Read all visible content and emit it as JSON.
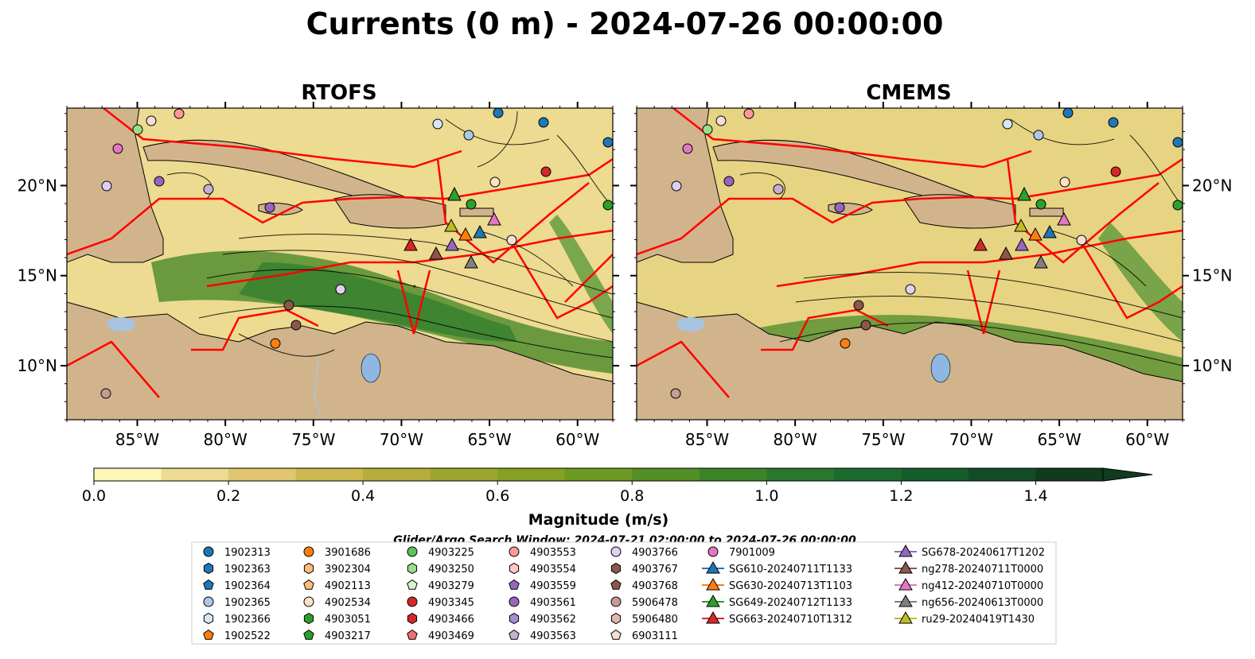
{
  "title": "Currents (0 m) - 2024-07-26 00:00:00",
  "panels": [
    {
      "title": "RTOFS",
      "key": "rtofs"
    },
    {
      "title": "CMEMS",
      "key": "cmems"
    }
  ],
  "map": {
    "extent": {
      "lon": [
        -89,
        -58
      ],
      "lat": [
        7,
        24.3
      ]
    },
    "lon_ticks": [
      {
        "value": -85,
        "label": "85°W"
      },
      {
        "value": -80,
        "label": "80°W"
      },
      {
        "value": -75,
        "label": "75°W"
      },
      {
        "value": -70,
        "label": "70°W"
      },
      {
        "value": -65,
        "label": "65°W"
      },
      {
        "value": -60,
        "label": "60°W"
      }
    ],
    "lat_ticks": [
      {
        "value": 20,
        "label": "20°N"
      },
      {
        "value": 15,
        "label": "15°N"
      },
      {
        "value": 10,
        "label": "10°N"
      }
    ],
    "colors": {
      "land": "#d2b48c",
      "lake": "#8eb7e3",
      "river": "#a7c4e0",
      "eez": "#ff0000",
      "streamline": "#000000"
    }
  },
  "colorbar": {
    "label": "Magnitude (m/s)",
    "min": 0.0,
    "max": 1.5,
    "step": 0.1,
    "tick_labels": [
      "0.0",
      "0.2",
      "0.4",
      "0.6",
      "0.8",
      "1.0",
      "1.2",
      "1.4"
    ],
    "colors": [
      "#fdf6b9",
      "#ecdb90",
      "#dfc66f",
      "#cdb850",
      "#b7ad3a",
      "#9ea52c",
      "#86a022",
      "#6e9922",
      "#548f26",
      "#3c832a",
      "#2a762c",
      "#1e6a2e",
      "#155d2b",
      "#134c26",
      "#103b1e"
    ],
    "extend": "max"
  },
  "legend": {
    "title": "Glider/Argo Search Window: 2024-07-21 02:00:00 to 2024-07-26 00:00:00",
    "columns": [
      [
        {
          "label": "1902313",
          "marker": "circle",
          "color": "#1f77b4"
        },
        {
          "label": "1902363",
          "marker": "hexagon",
          "color": "#1f77b4"
        },
        {
          "label": "1902364",
          "marker": "pentagon",
          "color": "#1f77b4"
        },
        {
          "label": "1902365",
          "marker": "circle",
          "color": "#aec7e8"
        },
        {
          "label": "1902366",
          "marker": "hexagon",
          "color": "#d6e8f8"
        },
        {
          "label": "1902522",
          "marker": "pentagon",
          "color": "#ff7f0e"
        }
      ],
      [
        {
          "label": "3901686",
          "marker": "circle",
          "color": "#ff7f0e"
        },
        {
          "label": "3902304",
          "marker": "hexagon",
          "color": "#ffbb78"
        },
        {
          "label": "4902113",
          "marker": "pentagon",
          "color": "#ffbb78"
        },
        {
          "label": "4902534",
          "marker": "circle",
          "color": "#ffe2c4"
        },
        {
          "label": "4903051",
          "marker": "hexagon",
          "color": "#2ca02c"
        },
        {
          "label": "4903217",
          "marker": "pentagon",
          "color": "#2ca02c"
        }
      ],
      [
        {
          "label": "4903225",
          "marker": "circle",
          "color": "#5cc45c"
        },
        {
          "label": "4903250",
          "marker": "hexagon",
          "color": "#98df8a"
        },
        {
          "label": "4903279",
          "marker": "pentagon",
          "color": "#d4f4cc"
        },
        {
          "label": "4903345",
          "marker": "circle",
          "color": "#d62728"
        },
        {
          "label": "4903466",
          "marker": "hexagon",
          "color": "#d62728"
        },
        {
          "label": "4903469",
          "marker": "pentagon",
          "color": "#f07070"
        }
      ],
      [
        {
          "label": "4903553",
          "marker": "circle",
          "color": "#ff9896"
        },
        {
          "label": "4903554",
          "marker": "hexagon",
          "color": "#ffc9c8"
        },
        {
          "label": "4903559",
          "marker": "pentagon",
          "color": "#9467bd"
        },
        {
          "label": "4903561",
          "marker": "circle",
          "color": "#9467bd"
        },
        {
          "label": "4903562",
          "marker": "hexagon",
          "color": "#a98bd0"
        },
        {
          "label": "4903563",
          "marker": "pentagon",
          "color": "#c5b0d5"
        }
      ],
      [
        {
          "label": "4903766",
          "marker": "circle",
          "color": "#e0cff0"
        },
        {
          "label": "4903767",
          "marker": "hexagon",
          "color": "#8c564b"
        },
        {
          "label": "4903768",
          "marker": "pentagon",
          "color": "#8c564b"
        },
        {
          "label": "5906478",
          "marker": "circle",
          "color": "#c49c94"
        },
        {
          "label": "5906480",
          "marker": "hexagon",
          "color": "#e0b8ae"
        },
        {
          "label": "6903111",
          "marker": "pentagon",
          "color": "#f5ddd8"
        }
      ],
      [
        {
          "label": "7901009",
          "marker": "circle",
          "color": "#e377c2"
        },
        {
          "label": "SG610-20240711T1133",
          "marker": "triangle",
          "color": "#1f77b4"
        },
        {
          "label": "SG630-20240713T1103",
          "marker": "triangle",
          "color": "#ff7f0e"
        },
        {
          "label": "SG649-20240712T1133",
          "marker": "triangle",
          "color": "#2ca02c"
        },
        {
          "label": "SG663-20240710T1312",
          "marker": "triangle",
          "color": "#d62728"
        }
      ],
      [
        {
          "label": "SG678-20240617T1202",
          "marker": "triangle",
          "color": "#9467bd"
        },
        {
          "label": "ng278-20240711T0000",
          "marker": "triangle",
          "color": "#8c564b"
        },
        {
          "label": "ng412-20240710T0000",
          "marker": "triangle",
          "color": "#e377c2"
        },
        {
          "label": "ng656-20240613T0000",
          "marker": "triangle",
          "color": "#7f7f7f"
        },
        {
          "label": "ru29-20240419T1430",
          "marker": "triangle",
          "color": "#bcbd22"
        }
      ]
    ]
  }
}
